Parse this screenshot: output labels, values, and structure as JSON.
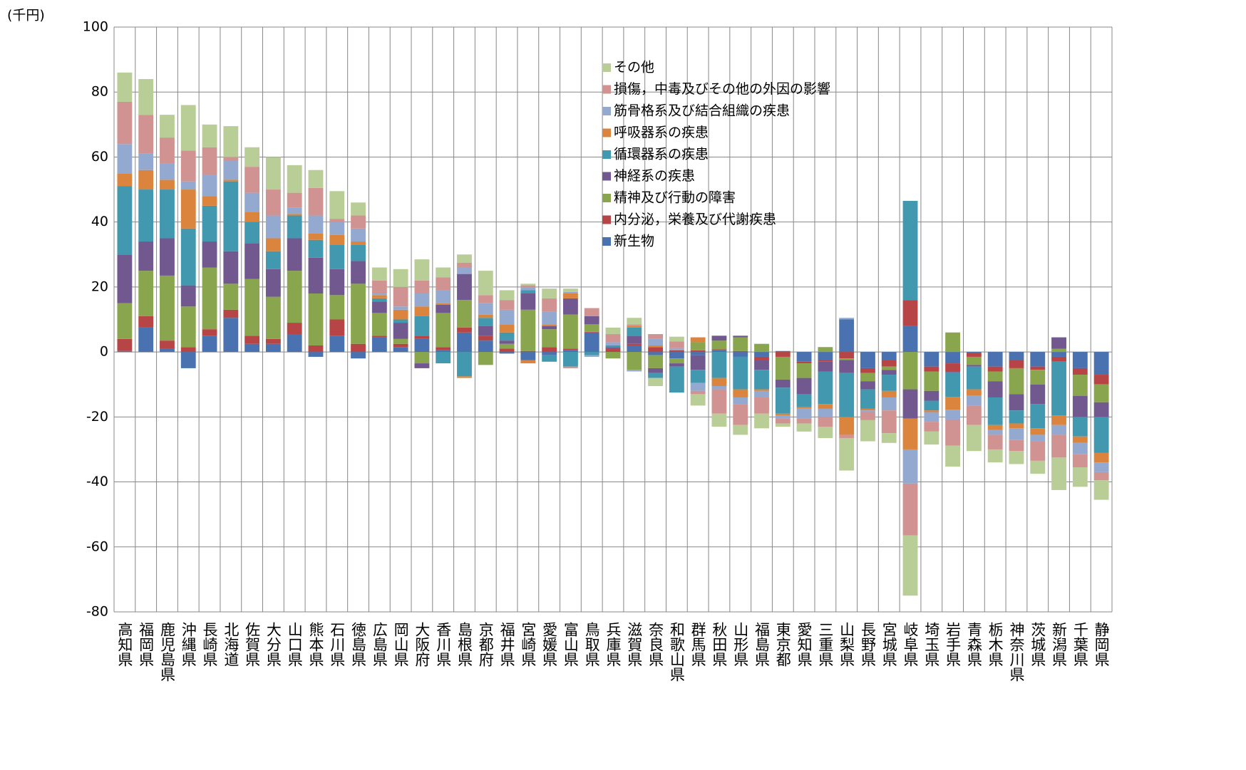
{
  "chart_data": {
    "type": "stacked_bar",
    "ylabel": "(千円)",
    "categories": [
      "高知県",
      "福岡県",
      "鹿児島県",
      "沖縄県",
      "長崎県",
      "北海道",
      "佐賀県",
      "大分県",
      "山口県",
      "熊本県",
      "石川県",
      "徳島県",
      "広島県",
      "岡山県",
      "大阪府",
      "香川県",
      "島根県",
      "京都府",
      "福井県",
      "宮崎県",
      "愛媛県",
      "富山県",
      "鳥取県",
      "兵庫県",
      "滋賀県",
      "奈良県",
      "和歌山県",
      "群馬県",
      "秋田県",
      "山形県",
      "福島県",
      "東京都",
      "愛知県",
      "三重県",
      "山梨県",
      "長野県",
      "宮城県",
      "岐阜県",
      "埼玉県",
      "岩手県",
      "青森県",
      "栃木県",
      "神奈川県",
      "茨城県",
      "新潟県",
      "千葉県",
      "静岡県"
    ],
    "series": [
      {
        "name": "新生物",
        "color": "#4a72b0",
        "values": [
          0.3,
          7.5,
          1,
          -5,
          5,
          10.5,
          2.5,
          2.5,
          5.5,
          -1.5,
          5,
          -2,
          4.5,
          1.5,
          4,
          0.5,
          6,
          3.5,
          -0.5,
          -2.5,
          -1,
          0.5,
          6,
          0,
          2,
          -1,
          -2,
          -1,
          0.5,
          -1.5,
          -1.5,
          0.3,
          -3,
          -2.5,
          10,
          -5,
          -2.5,
          8,
          -4.5,
          -3.5,
          -0.3,
          -4.5,
          -2.5,
          -4.5,
          -1.5,
          -5,
          -7
        ]
      },
      {
        "name": "内分泌，栄養及び代謝疾患",
        "color": "#b84545",
        "values": [
          3.7,
          3.5,
          2.5,
          1.5,
          2,
          2.5,
          2.5,
          1.5,
          3.5,
          2,
          5,
          2.5,
          0.5,
          1,
          1,
          1,
          1.5,
          1.5,
          1,
          0.3,
          1.5,
          0.5,
          0.2,
          1,
          0.5,
          1.5,
          0.5,
          0.5,
          0.3,
          0.3,
          -1,
          -1.5,
          -0.5,
          -0.5,
          -2,
          -1.5,
          -2,
          8,
          -1.5,
          -2.5,
          -1.2,
          -1.5,
          -2.5,
          -1,
          -1.5,
          -2,
          -3
        ]
      },
      {
        "name": "精神及び行動の障害",
        "color": "#89a54e",
        "values": [
          11,
          14,
          20,
          12.5,
          19,
          8,
          17.5,
          13,
          16,
          16,
          7.5,
          18.5,
          7,
          1.5,
          -3.5,
          10.5,
          8.5,
          -4,
          1.5,
          12.7,
          5.5,
          10.5,
          2.3,
          -2,
          -5.5,
          -4,
          -1.5,
          2.5,
          2.7,
          4.2,
          2.5,
          -7,
          -4.5,
          1.5,
          -0.5,
          -2.5,
          -1,
          -11.5,
          -6,
          6,
          -2.5,
          -3,
          -8,
          -4.5,
          1,
          -6.5,
          -5.5
        ]
      },
      {
        "name": "神経系の疾患",
        "color": "#71588f",
        "values": [
          15,
          9,
          11.5,
          6.5,
          8,
          10,
          11,
          8.5,
          10,
          11,
          8,
          7,
          3.5,
          5,
          -1.5,
          2.5,
          8,
          3,
          1,
          5,
          1,
          5,
          2.5,
          0.5,
          2.5,
          -1.5,
          -1,
          -4.5,
          1.5,
          0.5,
          -3,
          -2.5,
          -5,
          -3,
          -4,
          -2.5,
          -1.5,
          -9,
          -3,
          -0.3,
          -0.5,
          -5,
          -5,
          -6,
          3.5,
          -6.5,
          -4.5
        ]
      },
      {
        "name": "循環器系の疾患",
        "color": "#4198af",
        "values": [
          21,
          16,
          15,
          17.5,
          11,
          21.5,
          6.5,
          5.5,
          7,
          5.5,
          7.5,
          5,
          1,
          1,
          6,
          -3.5,
          -7.5,
          2.5,
          2.5,
          1,
          -2,
          -4.5,
          -1,
          0.5,
          2.5,
          -1.5,
          -8,
          -4,
          -8,
          -10,
          -6,
          -8,
          -4,
          -10,
          -13.5,
          -6,
          -5,
          30.5,
          -3,
          -7.5,
          -7,
          -8.5,
          -4,
          -7.5,
          -16.5,
          -6,
          -11
        ]
      },
      {
        "name": "呼吸器系の疾患",
        "color": "#db843d",
        "values": [
          4,
          6,
          3,
          12,
          3,
          0.5,
          3,
          4,
          0.5,
          2,
          3,
          1,
          1,
          3,
          3,
          0.5,
          -0.5,
          1,
          2.5,
          -1,
          0.5,
          1.5,
          0,
          0,
          0.5,
          0.5,
          0.2,
          1.5,
          -2.5,
          -2.5,
          -0.5,
          -0.5,
          -0.3,
          -1.5,
          -5.5,
          -0.5,
          -2,
          -9.5,
          -0.5,
          -4,
          -2,
          -1.5,
          -1.5,
          -2,
          -3,
          -2,
          -3
        ]
      },
      {
        "name": "筋骨格系及び結合組織の疾患",
        "color": "#93a9cf",
        "values": [
          9,
          5,
          5,
          2.5,
          6.5,
          6,
          6,
          7,
          2,
          5.5,
          4,
          4,
          0.5,
          1,
          4,
          4,
          2,
          3.5,
          4.5,
          1,
          4,
          0.5,
          -0.5,
          1,
          -0.5,
          2,
          0.5,
          -2.5,
          -1,
          -2,
          -2,
          -1,
          -3.2,
          -2.5,
          0.5,
          -0.5,
          -4,
          -10.5,
          -3,
          -3,
          -3,
          -1.5,
          -3.5,
          -2,
          -3,
          -3.5,
          -3
        ]
      },
      {
        "name": "損傷，中毒及びその他の外因の影響",
        "color": "#d19392",
        "values": [
          13,
          12,
          8,
          9.5,
          8.5,
          1,
          8,
          8,
          4.5,
          8.5,
          1,
          4,
          4,
          6,
          4,
          4,
          1.5,
          2.5,
          3,
          0.5,
          4,
          -0.5,
          2.5,
          2.5,
          0.5,
          1.5,
          2,
          -1,
          -7.5,
          -6.5,
          -5,
          -1.5,
          -1.5,
          -3,
          -1,
          -2.5,
          -7,
          -16,
          -3,
          -8,
          -6,
          -4.5,
          -3.5,
          -6,
          -7,
          -4,
          -2.5
        ]
      },
      {
        "name": "その他",
        "color": "#b9cd96",
        "values": [
          9,
          11,
          7,
          14,
          7,
          9.5,
          6,
          10,
          8.5,
          5.5,
          8.5,
          4,
          4,
          5.5,
          6.5,
          3,
          2.5,
          7.5,
          3,
          0.5,
          3,
          1,
          0,
          2,
          2,
          -2.5,
          1.5,
          -3.5,
          -4,
          -3,
          -4.5,
          -1,
          -2.5,
          -3.5,
          -10,
          -6.5,
          -3,
          -18.5,
          -4,
          -6.5,
          -8,
          -4,
          -4,
          -4,
          -10,
          -6,
          -6
        ]
      }
    ],
    "ylim": [
      -80,
      100
    ],
    "yticks": [
      -80,
      -60,
      -40,
      -20,
      0,
      20,
      40,
      60,
      80,
      100
    ],
    "grid": true
  }
}
